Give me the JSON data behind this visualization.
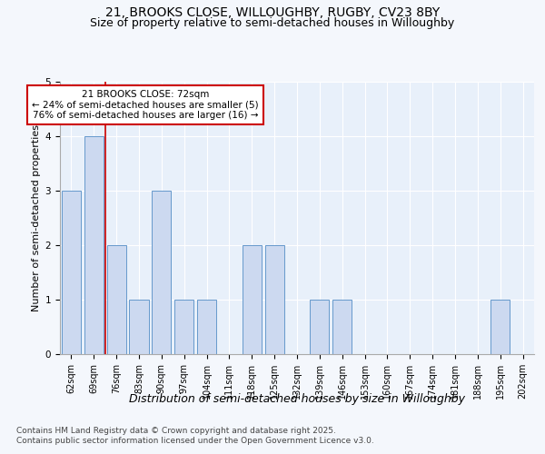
{
  "title1": "21, BROOKS CLOSE, WILLOUGHBY, RUGBY, CV23 8BY",
  "title2": "Size of property relative to semi-detached houses in Willoughby",
  "xlabel": "Distribution of semi-detached houses by size in Willoughby",
  "ylabel": "Number of semi-detached properties",
  "categories": [
    "62sqm",
    "69sqm",
    "76sqm",
    "83sqm",
    "90sqm",
    "97sqm",
    "104sqm",
    "111sqm",
    "118sqm",
    "125sqm",
    "132sqm",
    "139sqm",
    "146sqm",
    "153sqm",
    "160sqm",
    "167sqm",
    "174sqm",
    "181sqm",
    "188sqm",
    "195sqm",
    "202sqm"
  ],
  "values": [
    3,
    4,
    2,
    1,
    3,
    1,
    1,
    0,
    2,
    2,
    0,
    1,
    1,
    0,
    0,
    0,
    0,
    0,
    0,
    1,
    0
  ],
  "bar_color": "#ccd9f0",
  "bar_edge_color": "#6699cc",
  "vline_x": 1.5,
  "vline_color": "#cc0000",
  "annotation_title": "21 BROOKS CLOSE: 72sqm",
  "annotation_line1": "← 24% of semi-detached houses are smaller (5)",
  "annotation_line2": "76% of semi-detached houses are larger (16) →",
  "annotation_box_facecolor": "#ffffff",
  "annotation_box_edgecolor": "#cc0000",
  "ylim": [
    0,
    5
  ],
  "yticks": [
    0,
    1,
    2,
    3,
    4,
    5
  ],
  "background_color": "#f4f7fc",
  "plot_bg_color": "#e8f0fa",
  "grid_color": "#ffffff",
  "footer1": "Contains HM Land Registry data © Crown copyright and database right 2025.",
  "footer2": "Contains public sector information licensed under the Open Government Licence v3.0.",
  "title_fontsize": 10,
  "subtitle_fontsize": 9,
  "xlabel_fontsize": 9,
  "ylabel_fontsize": 8,
  "tick_fontsize": 7,
  "annotation_fontsize": 7.5,
  "footer_fontsize": 6.5
}
